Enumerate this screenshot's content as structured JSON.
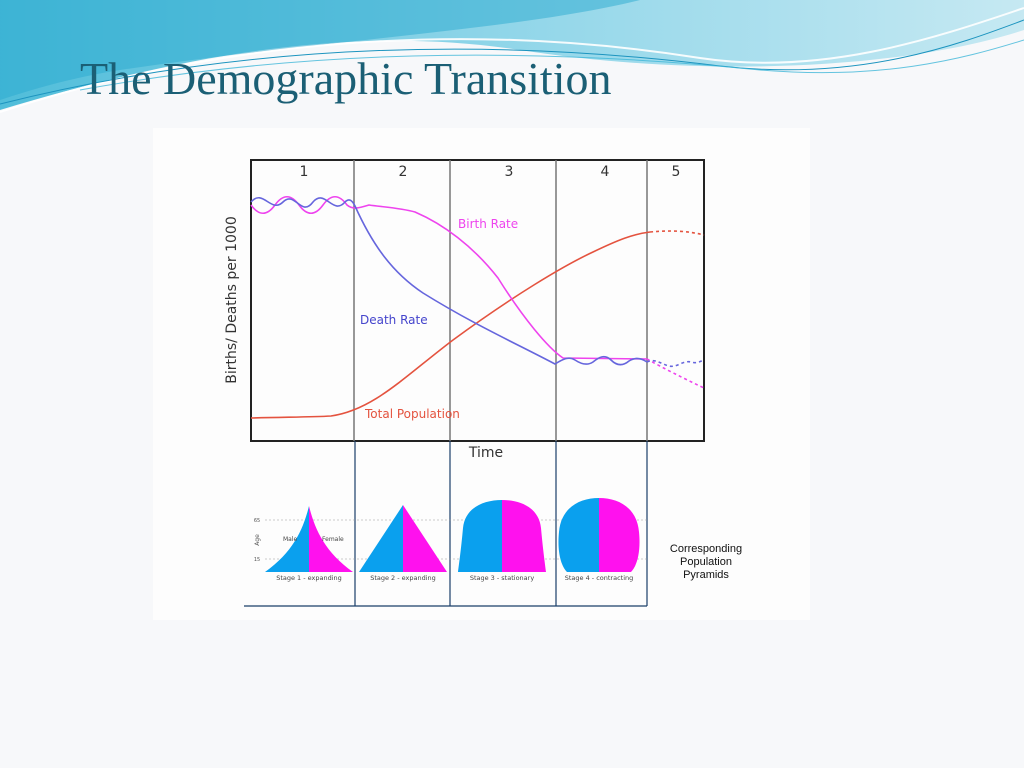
{
  "slide": {
    "title": "The Demographic Transition"
  },
  "diagram": {
    "stages": [
      "1",
      "2",
      "3",
      "4",
      "5"
    ],
    "y_axis_label": "Births/ Deaths per 1000",
    "x_axis_label": "Time",
    "curves": {
      "birth_rate": "Birth Rate",
      "death_rate": "Death Rate",
      "total_population": "Total Population"
    },
    "colors": {
      "birth_rate": "#ee44ee",
      "death_rate": "#6666dd",
      "total_population": "#e4533f",
      "male": "#0aa0ee",
      "female": "#ff11ee"
    },
    "pyramids": {
      "age_label": "Age",
      "age_ticks": [
        "65",
        "15"
      ],
      "male_label": "Male",
      "female_label": "Female",
      "captions": [
        "Stage 1 - expanding",
        "Stage 2 - expanding",
        "Stage 3 - stationary",
        "Stage 4 - contracting"
      ],
      "caption_side": [
        "Corresponding",
        "Population",
        "Pyramids"
      ]
    }
  }
}
